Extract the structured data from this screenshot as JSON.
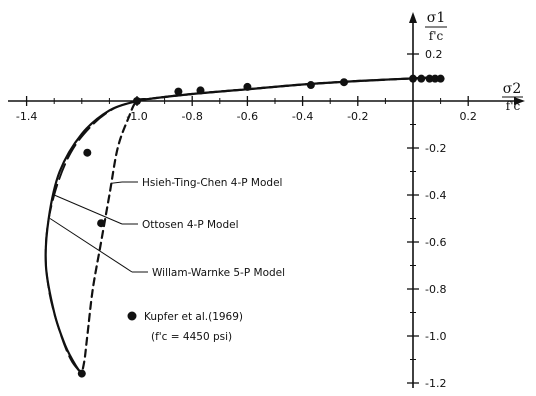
{
  "chart_data": {
    "type": "line",
    "title": "",
    "xlabel": "σ2 / f'c",
    "ylabel": "σ1 / f'c",
    "xlim": [
      -1.45,
      0.28
    ],
    "ylim": [
      -1.25,
      0.25
    ],
    "grid": false,
    "x_ticks": [
      -1.4,
      -1.0,
      -0.8,
      -0.6,
      -0.4,
      -0.2,
      0.2
    ],
    "x_tick_labels": [
      "-1.4",
      "-1.0",
      "-0.8",
      "-0.6",
      "-0.4",
      "-0.2",
      "0.2"
    ],
    "y_ticks": [
      0.2,
      -0.2,
      -0.4,
      -0.6,
      -0.8,
      -1.0,
      -1.2
    ],
    "y_tick_labels": [
      "0.2",
      "-0.2",
      "-0.4",
      "-0.6",
      "-0.8",
      "-1.0",
      "-1.2"
    ],
    "x_minor_ticks": [
      -1.3,
      -1.2,
      -1.1,
      -0.9,
      -0.7,
      -0.5,
      -0.3,
      -0.1,
      0.1
    ],
    "y_minor_ticks": [
      0.1,
      -0.1,
      -0.3,
      -0.5,
      -0.7,
      -0.9,
      -1.1
    ],
    "axis_labels": {
      "x_num": "σ2",
      "x_den": "f'c",
      "y_num": "σ1",
      "y_den": "f'c"
    },
    "series": [
      {
        "name": "Hsieh-Ting-Chen 4-P Model",
        "style": "dashed",
        "x": [
          0.07,
          -0.2,
          -0.4,
          -0.6,
          -0.8,
          -0.95,
          -1.0,
          -1.03,
          -1.07,
          -1.1,
          -1.13,
          -1.16,
          -1.18,
          -1.19,
          -1.2
        ],
        "y": [
          0.1,
          0.085,
          0.07,
          0.05,
          0.03,
          0.01,
          0.0,
          -0.07,
          -0.2,
          -0.4,
          -0.6,
          -0.8,
          -1.0,
          -1.1,
          -1.16
        ]
      },
      {
        "name": "Ottosen 4-P Model",
        "style": "solid",
        "x": [
          0.07,
          -0.2,
          -0.4,
          -0.6,
          -0.8,
          -0.95,
          -1.0,
          -1.1,
          -1.2,
          -1.28,
          -1.32,
          -1.33,
          -1.3,
          -1.26,
          -1.22,
          -1.2
        ],
        "y": [
          0.1,
          0.085,
          0.07,
          0.05,
          0.03,
          0.01,
          0.0,
          -0.04,
          -0.14,
          -0.3,
          -0.5,
          -0.7,
          -0.9,
          -1.04,
          -1.13,
          -1.16
        ]
      },
      {
        "name": "Willam-Warnke 5-P Model",
        "style": "long-dash",
        "x": [
          0.07,
          -0.2,
          -0.4,
          -0.6,
          -0.8,
          -0.95,
          -1.0,
          -1.08,
          -1.16,
          -1.24,
          -1.3,
          -1.33,
          -1.32,
          -1.28,
          -1.24,
          -1.2
        ],
        "y": [
          0.1,
          0.085,
          0.07,
          0.05,
          0.03,
          0.01,
          0.0,
          -0.03,
          -0.1,
          -0.22,
          -0.4,
          -0.6,
          -0.8,
          -0.98,
          -1.1,
          -1.16
        ]
      }
    ],
    "points": {
      "name": "Kupfer et al.(1969)",
      "x": [
        -1.0,
        -0.85,
        -0.77,
        -0.6,
        -0.37,
        -0.25,
        0.0,
        0.03,
        0.06,
        0.08,
        0.1,
        -1.18,
        -1.13,
        -1.2
      ],
      "y": [
        0.0,
        0.04,
        0.045,
        0.06,
        0.068,
        0.08,
        0.095,
        0.095,
        0.095,
        0.095,
        0.095,
        -0.22,
        -0.52,
        -1.16
      ]
    },
    "legend_text": {
      "marker_label": "Kupfer et al.(1969)",
      "sub_label": "(f'c = 4450 psi)"
    },
    "annotations": [
      {
        "text": "Hsieh-Ting-Chen 4-P Model",
        "target_series": 0,
        "at_y": -0.35
      },
      {
        "text": "Ottosen 4-P Model",
        "target_series": 1,
        "at_y": -0.4
      },
      {
        "text": "Willam-Warnke 5-P Model",
        "target_series": 2,
        "at_y": -0.5
      }
    ]
  }
}
